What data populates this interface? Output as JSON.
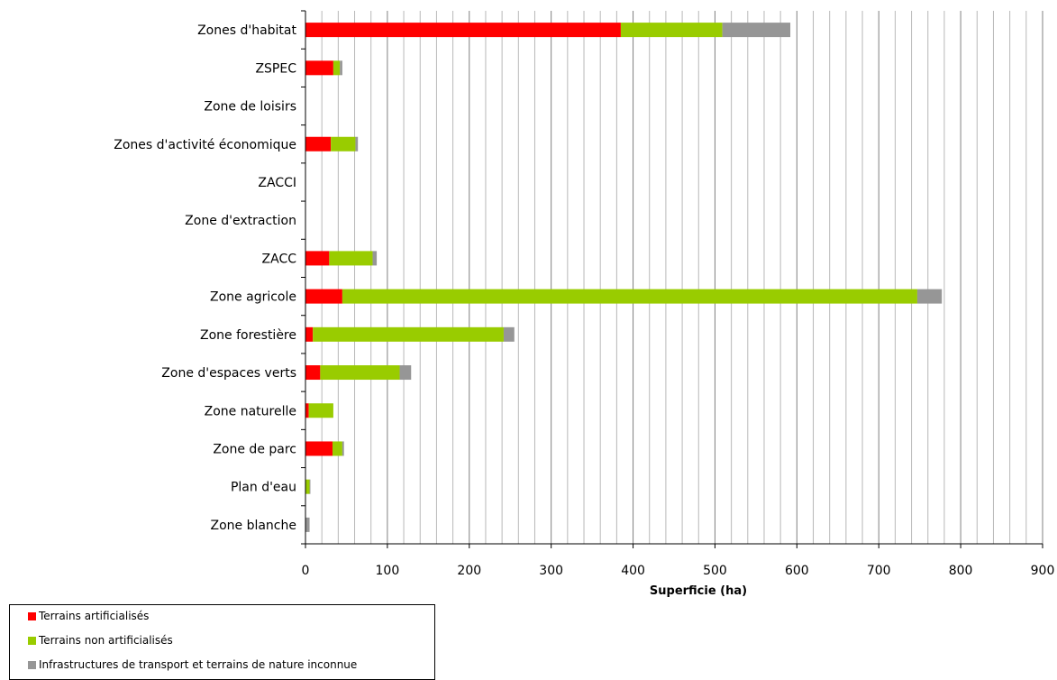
{
  "chart_data": {
    "type": "bar",
    "orientation": "horizontal",
    "stacked": true,
    "title": "",
    "xlabel": "Superficie (ha)",
    "ylabel": "",
    "xlim": [
      0,
      900
    ],
    "xticks": [
      0,
      100,
      200,
      300,
      400,
      500,
      600,
      700,
      800,
      900
    ],
    "minor_gridline_step": 20,
    "grid": true,
    "legend_position": "bottom-left",
    "categories": [
      "Zones d'habitat",
      "ZSPEC",
      "Zone de loisirs",
      "Zones d'activité économique",
      "ZACCI",
      "Zone d'extraction",
      "ZACC",
      "Zone agricole",
      "Zone forestière",
      "Zone d'espaces verts",
      "Zone naturelle",
      "Zone de parc",
      "Plan d'eau",
      "Zone blanche"
    ],
    "series": [
      {
        "name": "Terrains artificialisés",
        "color": "#ff0000",
        "values": [
          385,
          34,
          0,
          31,
          0,
          0,
          29,
          45,
          9,
          18,
          4,
          33,
          0,
          0
        ]
      },
      {
        "name": "Terrains non artificialisés",
        "color": "#99cc00",
        "values": [
          124,
          8,
          0,
          30,
          0,
          0,
          53,
          702,
          233,
          97,
          30,
          12,
          5,
          0
        ]
      },
      {
        "name": "Infrastructures de transport et terrains de nature inconnue",
        "color": "#969696",
        "values": [
          83,
          3,
          0,
          3,
          0,
          0,
          5,
          30,
          13,
          14,
          0,
          2,
          1,
          5
        ]
      }
    ]
  }
}
